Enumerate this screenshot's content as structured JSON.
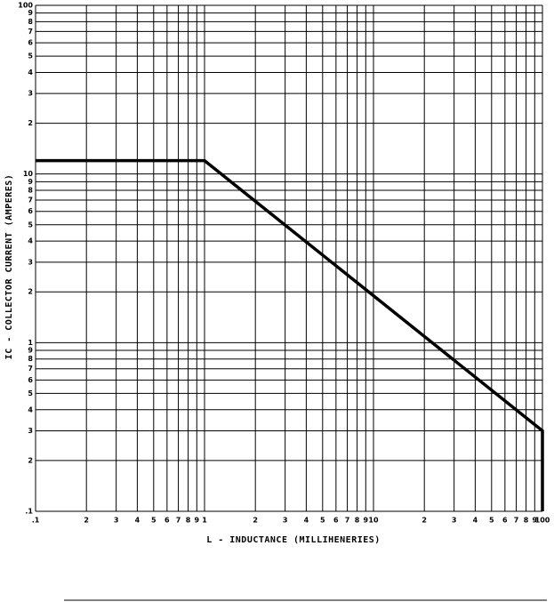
{
  "chart_data": {
    "type": "line",
    "xlabel": "L - INDUCTANCE (MILLIHENERIES)",
    "ylabel": "IC - COLLECTOR CURRENT (AMPERES)",
    "log_x": true,
    "log_y": true,
    "grid": true,
    "xlim": [
      0.1,
      100
    ],
    "ylim": [
      0.1,
      100
    ],
    "xticks": [
      {
        "value": 0.1,
        "label": ".1"
      },
      {
        "value": 0.2,
        "label": "2"
      },
      {
        "value": 0.3,
        "label": "3"
      },
      {
        "value": 0.4,
        "label": "4"
      },
      {
        "value": 0.5,
        "label": "5"
      },
      {
        "value": 0.6,
        "label": "6"
      },
      {
        "value": 0.7,
        "label": "7"
      },
      {
        "value": 0.8,
        "label": "8"
      },
      {
        "value": 0.9,
        "label": "9"
      },
      1,
      2,
      3,
      4,
      5,
      6,
      7,
      8,
      9,
      10,
      {
        "value": 20,
        "label": "2"
      },
      {
        "value": 30,
        "label": "3"
      },
      {
        "value": 40,
        "label": "4"
      },
      {
        "value": 50,
        "label": "5"
      },
      {
        "value": 60,
        "label": "6"
      },
      {
        "value": 70,
        "label": "7"
      },
      {
        "value": 80,
        "label": "8"
      },
      {
        "value": 90,
        "label": "9"
      },
      100
    ],
    "yticks": [
      {
        "value": 0.1,
        "label": ".1"
      },
      {
        "value": 0.2,
        "label": "2"
      },
      {
        "value": 0.3,
        "label": "3"
      },
      {
        "value": 0.4,
        "label": "4"
      },
      {
        "value": 0.5,
        "label": "5"
      },
      {
        "value": 0.6,
        "label": "6"
      },
      {
        "value": 0.7,
        "label": "7"
      },
      {
        "value": 0.8,
        "label": "8"
      },
      {
        "value": 0.9,
        "label": "9"
      },
      1,
      2,
      3,
      4,
      5,
      6,
      7,
      8,
      9,
      10,
      {
        "value": 20,
        "label": "2"
      },
      {
        "value": 30,
        "label": "3"
      },
      {
        "value": 40,
        "label": "4"
      },
      {
        "value": 50,
        "label": "5"
      },
      {
        "value": 60,
        "label": "6"
      },
      {
        "value": 70,
        "label": "7"
      },
      {
        "value": 80,
        "label": "8"
      },
      {
        "value": 90,
        "label": "9"
      },
      100
    ],
    "x": [
      0.1,
      1,
      100,
      100
    ],
    "series": [
      {
        "color": "#000000",
        "values": [
          12,
          12,
          0.3,
          0.1
        ]
      }
    ]
  }
}
